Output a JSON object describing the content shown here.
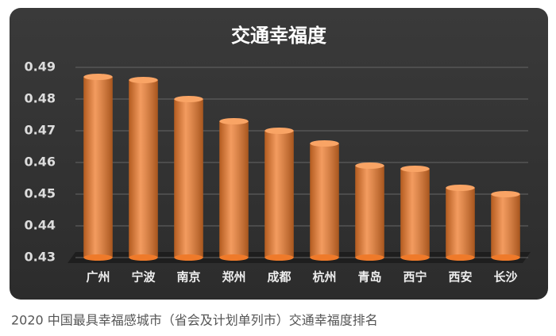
{
  "chart_data": {
    "type": "bar",
    "title": "交通幸福度",
    "categories": [
      "广州",
      "宁波",
      "南京",
      "郑州",
      "成都",
      "杭州",
      "青岛",
      "西宁",
      "西安",
      "长沙"
    ],
    "values": [
      0.487,
      0.486,
      0.48,
      0.473,
      0.47,
      0.466,
      0.459,
      0.458,
      0.452,
      0.45
    ],
    "color": "#ef7a2a",
    "ylim": [
      0.43,
      0.49
    ],
    "yticks": [
      0.43,
      0.44,
      0.45,
      0.46,
      0.47,
      0.48,
      0.49
    ],
    "grid": true,
    "caption": "2020 中国最具幸福感城市（省会及计划单列市）交通幸福度排名"
  }
}
